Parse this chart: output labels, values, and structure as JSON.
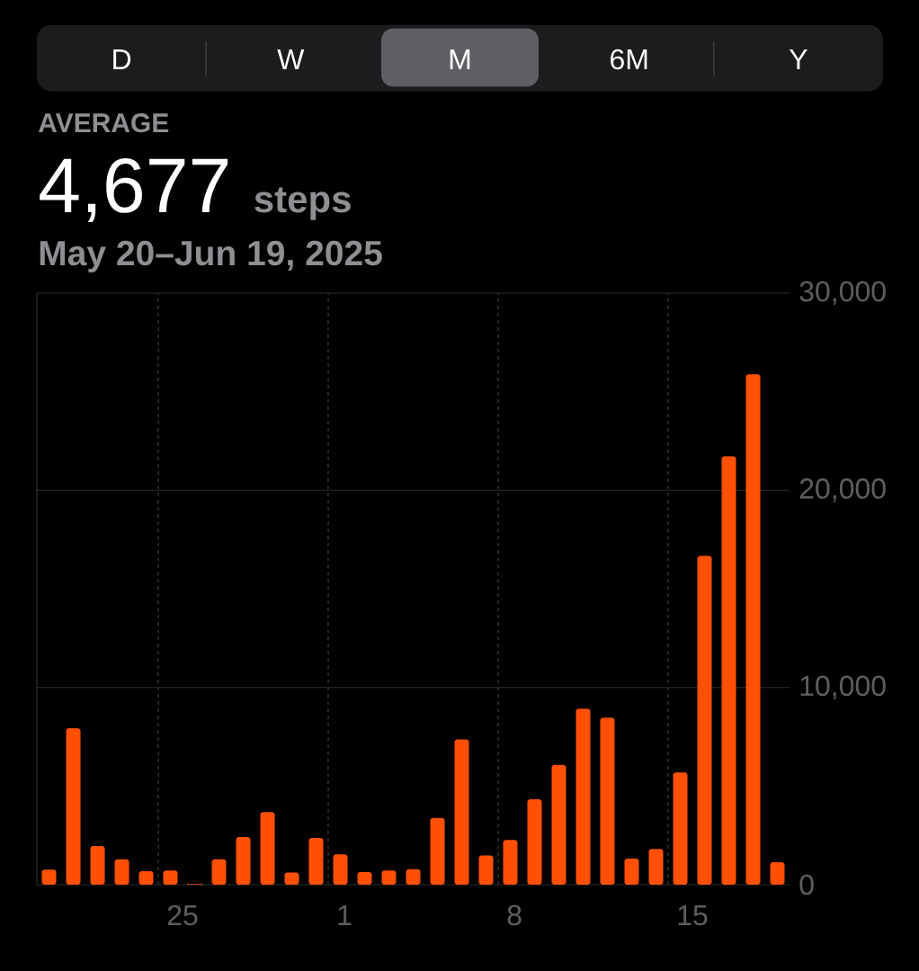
{
  "chart_data": {
    "type": "bar",
    "title": "4,677",
    "subtitle": "May 20–Jun 19, 2025",
    "annotations": [
      "D",
      "W",
      "M",
      "6M",
      "Y",
      "AVERAGE",
      "steps"
    ],
    "categories": [
      null,
      null,
      null,
      null,
      null,
      "25",
      null,
      null,
      null,
      null,
      null,
      null,
      "1",
      null,
      null,
      null,
      null,
      null,
      null,
      "8",
      null,
      null,
      null,
      null,
      null,
      null,
      "15",
      null,
      null,
      null,
      null
    ],
    "values": [
      760,
      7930,
      1960,
      1290,
      680,
      720,
      30,
      1290,
      2420,
      3680,
      610,
      2370,
      1540,
      640,
      720,
      790,
      3380,
      7360,
      1480,
      2270,
      4330,
      6080,
      8930,
      8470,
      1320,
      1810,
      5690,
      16670,
      21730,
      25890,
      1140
    ],
    "color": "#ff5005",
    "ylim": [
      0,
      30000
    ],
    "yticks": [
      0,
      {
        "value": 10000,
        "label": "10,000"
      },
      {
        "value": 20000,
        "label": "20,000"
      },
      {
        "value": 30000,
        "label": "30,000"
      }
    ],
    "grid": true
  }
}
